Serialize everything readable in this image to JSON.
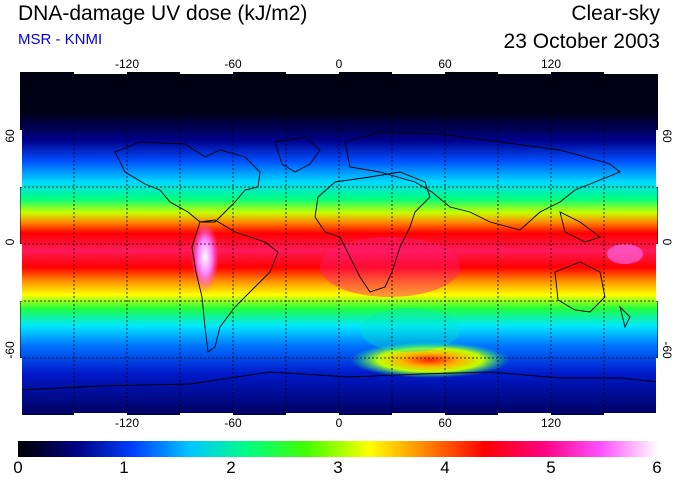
{
  "header": {
    "title": "DNA-damage UV dose (kJ/m2)",
    "source": "MSR - KNMI",
    "condition": "Clear-sky",
    "date": "23 October 2003"
  },
  "map": {
    "longitude_ticks": [
      "-120",
      "-60",
      "0",
      "60",
      "120"
    ],
    "latitude_ticks_left": [
      "60",
      "0",
      "-60"
    ],
    "latitude_ticks_right": [
      "60",
      "0",
      "-60"
    ],
    "longitude_range": [
      -180,
      180
    ],
    "latitude_range": [
      -90,
      90
    ],
    "grid": "dotted every 30 degrees"
  },
  "colorbar": {
    "labels": [
      "0",
      "1",
      "2",
      "3",
      "4",
      "5",
      "6"
    ],
    "range": [
      0,
      6
    ],
    "colors": [
      "#000000",
      "#000080",
      "#0040ff",
      "#00c8ff",
      "#00ff80",
      "#40ff00",
      "#ffff00",
      "#ff8000",
      "#ff0000",
      "#ff0080",
      "#ff50ff",
      "#ffffff"
    ]
  }
}
